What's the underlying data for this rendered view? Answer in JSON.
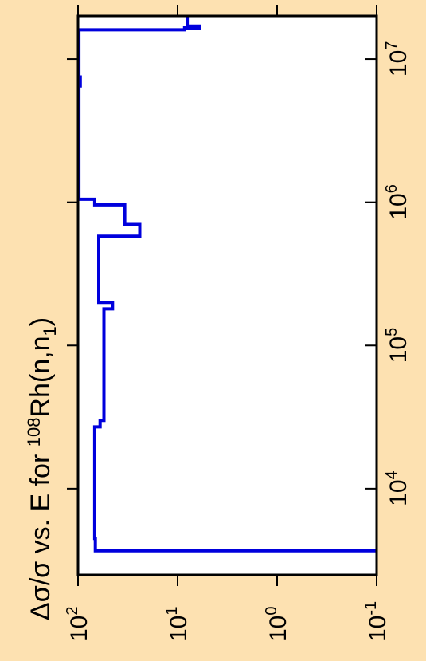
{
  "chart_data": {
    "type": "line",
    "orientation": "rotated-90",
    "title_parts": {
      "prefix": "Δσ/σ vs. E for ",
      "isotope_mass": "108",
      "element": "Rh(n,n",
      "sub": "1",
      "suffix": ")"
    },
    "x_axis": {
      "scale": "log",
      "range": [
        2500,
        20000000
      ],
      "ticks": [
        {
          "value": 10000,
          "base": "10",
          "exp": "4"
        },
        {
          "value": 100000,
          "base": "10",
          "exp": "5"
        },
        {
          "value": 1000000,
          "base": "10",
          "exp": "6"
        },
        {
          "value": 10000000,
          "base": "10",
          "exp": "7"
        }
      ]
    },
    "y_axis": {
      "scale": "log",
      "range": [
        0.1,
        100
      ],
      "ticks": [
        {
          "value": 100,
          "base": "10",
          "exp": "2"
        },
        {
          "value": 10,
          "base": "10",
          "exp": "1"
        },
        {
          "value": 1,
          "base": "10",
          "exp": "0"
        },
        {
          "value": 0.1,
          "base": "10",
          "exp": "-1"
        }
      ]
    },
    "series": [
      {
        "color": "#0000dd",
        "step_points": [
          [
            3680,
            0.1
          ],
          [
            3680,
            67
          ],
          [
            4500,
            67
          ],
          [
            4500,
            68
          ],
          [
            27000,
            68
          ],
          [
            27000,
            60
          ],
          [
            30000,
            60
          ],
          [
            30000,
            55
          ],
          [
            180000,
            55
          ],
          [
            180000,
            45
          ],
          [
            200000,
            45
          ],
          [
            200000,
            62
          ],
          [
            580000,
            62
          ],
          [
            580000,
            24
          ],
          [
            700000,
            24
          ],
          [
            700000,
            34
          ],
          [
            960000,
            34
          ],
          [
            960000,
            68
          ],
          [
            1050000,
            68
          ],
          [
            1050000,
            98
          ],
          [
            6500000,
            98
          ],
          [
            6500000,
            95
          ],
          [
            7500000,
            95
          ],
          [
            7500000,
            98
          ],
          [
            16000000,
            98
          ],
          [
            16000000,
            8.5
          ],
          [
            16500000,
            8.5
          ],
          [
            16500000,
            6
          ],
          [
            17000000,
            6
          ],
          [
            17000000,
            8
          ],
          [
            20000000,
            8
          ]
        ]
      }
    ]
  }
}
